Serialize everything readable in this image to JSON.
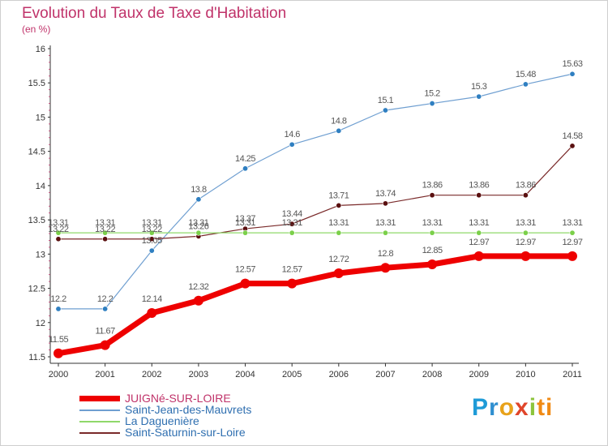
{
  "title": "Evolution du Taux de Taxe d'Habitation",
  "subtitle": "(en %)",
  "brand": "Proxiti",
  "chart_data": {
    "type": "line",
    "x": [
      "2000",
      "2001",
      "2002",
      "2003",
      "2004",
      "2005",
      "2006",
      "2007",
      "2008",
      "2009",
      "2010",
      "2011"
    ],
    "ylim": [
      11.5,
      16
    ],
    "yticks": [
      "11.5",
      "12",
      "12.5",
      "13",
      "13.5",
      "14",
      "14.5",
      "15",
      "15.5",
      "16"
    ],
    "grid": false,
    "legend_position": "bottom-left",
    "series": [
      {
        "name": "JUIGNé-SUR-LOIRE",
        "color": "#ee0000",
        "line_width": 7,
        "marker_r": 6,
        "values": [
          11.55,
          11.67,
          12.14,
          12.32,
          12.57,
          12.57,
          12.72,
          12.8,
          12.85,
          12.97,
          12.97,
          12.97
        ],
        "labels": [
          "11.55",
          "11.67",
          "12.14",
          "12.32",
          "12.57",
          "12.57",
          "12.72",
          "12.8",
          "12.85",
          "12.97",
          "12.97",
          "12.97"
        ]
      },
      {
        "name": "Saint-Jean-des-Mauvrets",
        "color": "#6f9fd1",
        "marker_color": "#2f7fc1",
        "line_width": 1.2,
        "marker_r": 3.2,
        "values": [
          12.2,
          12.2,
          13.05,
          13.8,
          14.25,
          14.6,
          14.8,
          15.1,
          15.2,
          15.3,
          15.48,
          15.63
        ],
        "labels": [
          "12.2",
          "12.2",
          "13.05",
          "13.8",
          "14.25",
          "14.6",
          "14.8",
          "15.1",
          "15.2",
          "15.3",
          "15.48",
          "15.63"
        ]
      },
      {
        "name": "La Daguenière",
        "color": "#8fd86a",
        "marker_color": "#7bd04a",
        "line_width": 1.2,
        "marker_r": 3.2,
        "values": [
          13.31,
          13.31,
          13.31,
          13.31,
          13.31,
          13.31,
          13.31,
          13.31,
          13.31,
          13.31,
          13.31,
          13.31
        ],
        "labels": [
          "13.31",
          "13.31",
          "13.31",
          "13.31",
          "13.31",
          "13.31",
          "13.31",
          "13.31",
          "13.31",
          "13.31",
          "13.31",
          "13.31"
        ]
      },
      {
        "name": "Saint-Saturnin-sur-Loire",
        "color": "#7a2a2a",
        "marker_color": "#5a1010",
        "line_width": 1.2,
        "marker_r": 3.2,
        "values": [
          13.22,
          13.22,
          13.22,
          13.26,
          13.37,
          13.44,
          13.71,
          13.74,
          13.86,
          13.86,
          13.86,
          14.58
        ],
        "labels": [
          "13.22",
          "13.22",
          "13.22",
          "13.26",
          "13.37",
          "13.44",
          "13.71",
          "13.74",
          "13.86",
          "13.86",
          "13.86",
          "14.58"
        ]
      }
    ]
  }
}
